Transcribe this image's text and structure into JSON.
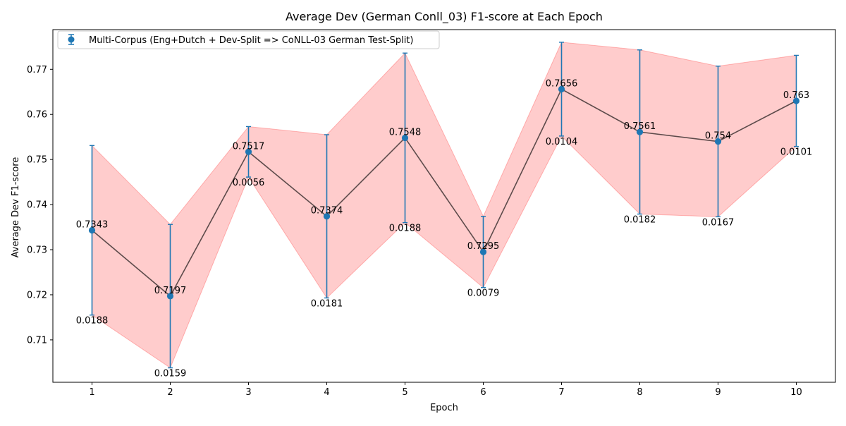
{
  "chart_data": {
    "type": "line",
    "title": "Average Dev (German Conll_03) F1-score at Each Epoch",
    "xlabel": "Epoch",
    "ylabel": "Average Dev F1-score",
    "x": [
      1,
      2,
      3,
      4,
      5,
      6,
      7,
      8,
      9,
      10
    ],
    "series": [
      {
        "name": "Multi-Corpus (Eng+Dutch + Dev-Split => CoNLL-03 German Test-Split)",
        "values": [
          0.7343,
          0.7197,
          0.7517,
          0.7374,
          0.7548,
          0.7295,
          0.7656,
          0.7561,
          0.754,
          0.763
        ],
        "errors": [
          0.0188,
          0.0159,
          0.0056,
          0.0181,
          0.0188,
          0.0079,
          0.0104,
          0.0182,
          0.0167,
          0.0101
        ],
        "value_labels": [
          "0.7343",
          "0.7197",
          "0.7517",
          "0.7374",
          "0.7548",
          "0.7295",
          "0.7656",
          "0.7561",
          "0.754",
          "0.763"
        ],
        "error_labels": [
          "0.0188",
          "0.0159",
          "0.0056",
          "0.0181",
          "0.0188",
          "0.0079",
          "0.0104",
          "0.0182",
          "0.0167",
          "0.0101"
        ]
      }
    ],
    "xlim": [
      0.5,
      10.5
    ],
    "ylim": [
      0.7006,
      0.7788
    ],
    "xticks": [
      "1",
      "2",
      "3",
      "4",
      "5",
      "6",
      "7",
      "8",
      "9",
      "10"
    ],
    "yticks": [
      "0.71",
      "0.72",
      "0.73",
      "0.74",
      "0.75",
      "0.76",
      "0.77"
    ],
    "ytick_values": [
      0.71,
      0.72,
      0.73,
      0.74,
      0.75,
      0.76,
      0.77
    ],
    "grid": false,
    "legend": "top-left",
    "colors": {
      "series": "#1f77b4",
      "line": "#5d4b4b",
      "band": "#ff0000",
      "axis": "#000000"
    }
  }
}
